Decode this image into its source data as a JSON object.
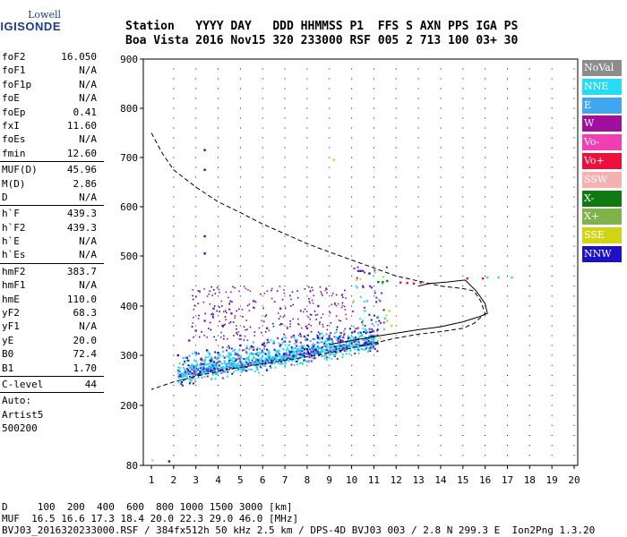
{
  "logo": {
    "line1": "Lowell",
    "line2": "DIGISONDE"
  },
  "header": {
    "line1": "Station   YYYY DAY   DDD HHMMSS P1  FFS S AXN PPS IGA PS",
    "line2": "Boa Vista 2016 Nov15 320 233000 RSF 005 2 713 100 03+ 30"
  },
  "params": {
    "group1": [
      {
        "name": "foF2",
        "value": "16.050"
      },
      {
        "name": "foF1",
        "value": "N/A"
      },
      {
        "name": "foF1p",
        "value": "N/A"
      },
      {
        "name": "foE",
        "value": "N/A"
      },
      {
        "name": "foEp",
        "value": "0.41"
      },
      {
        "name": "fxI",
        "value": "11.60"
      },
      {
        "name": "foEs",
        "value": "N/A"
      },
      {
        "name": "fmin",
        "value": "12.60"
      }
    ],
    "group2": [
      {
        "name": "MUF(D)",
        "value": "45.96"
      },
      {
        "name": "M(D)",
        "value": "2.86"
      },
      {
        "name": "D",
        "value": "N/A"
      }
    ],
    "group3": [
      {
        "name": "h`F",
        "value": "439.3"
      },
      {
        "name": "h`F2",
        "value": "439.3"
      },
      {
        "name": "h`E",
        "value": "N/A"
      },
      {
        "name": "h`Es",
        "value": "N/A"
      }
    ],
    "group4": [
      {
        "name": "hmF2",
        "value": "383.7"
      },
      {
        "name": "hmF1",
        "value": "N/A"
      },
      {
        "name": "hmE",
        "value": "110.0"
      },
      {
        "name": "yF2",
        "value": "68.3"
      },
      {
        "name": "yF1",
        "value": "N/A"
      },
      {
        "name": "yE",
        "value": "20.0"
      },
      {
        "name": "B0",
        "value": "72.4"
      },
      {
        "name": "B1",
        "value": "1.70"
      }
    ],
    "group5": [
      {
        "name": "C-level",
        "value": "44"
      }
    ],
    "auto": [
      "Auto:",
      "Artist5",
      "500200"
    ]
  },
  "legend": [
    {
      "label": "NoVal",
      "color": "#8c8c8c"
    },
    {
      "label": "NNE",
      "color": "#27dcf2"
    },
    {
      "label": "E",
      "color": "#3fa6f0"
    },
    {
      "label": "W",
      "color": "#a0109c"
    },
    {
      "label": "Vo-",
      "color": "#f03fb2"
    },
    {
      "label": "Vo+",
      "color": "#ee0f3c"
    },
    {
      "label": "SSW",
      "color": "#f5b0b0"
    },
    {
      "label": "X-",
      "color": "#0f7a12"
    },
    {
      "label": "X+",
      "color": "#7fb24a"
    },
    {
      "label": "SSE",
      "color": "#cfd414"
    },
    {
      "label": "NNW",
      "color": "#1e10c4"
    }
  ],
  "footer": {
    "line1": "D     100  200  400  600  800 1000 1500 3000 [km]",
    "line2": "MUF  16.5 16.6 17.3 18.4 20.0 22.3 29.0 46.0 [MHz]",
    "line3": "BVJ03_2016320233000.RSF / 384fx512h 50 kHz 2.5 km / DPS-4D BVJ03 003 / 2.8 N 299.3 E  Ion2Png 1.3.20"
  },
  "chart_data": {
    "type": "scatter",
    "x_ticks": [
      1,
      2,
      3,
      4,
      5,
      6,
      7,
      8,
      9,
      10,
      11,
      12,
      13,
      14,
      15,
      16,
      17,
      18,
      19,
      20
    ],
    "y_ticks": [
      80,
      200,
      300,
      400,
      500,
      600,
      700,
      800,
      900
    ],
    "xlim": [
      1,
      20
    ],
    "ylim": [
      80,
      900
    ],
    "grid": true,
    "series": [
      {
        "name": "NNE",
        "color": "#27dcf2",
        "points": [
          [
            2.2,
            270
          ],
          [
            2.5,
            272
          ],
          [
            2.8,
            275
          ],
          [
            3.0,
            278
          ],
          [
            3.2,
            280
          ],
          [
            3.5,
            282
          ],
          [
            3.8,
            283
          ],
          [
            4.0,
            285
          ],
          [
            4.3,
            287
          ],
          [
            4.6,
            290
          ],
          [
            5.0,
            292
          ],
          [
            5.3,
            294
          ],
          [
            5.6,
            296
          ],
          [
            6.0,
            298
          ],
          [
            6.3,
            300
          ],
          [
            6.6,
            302
          ],
          [
            7.0,
            304
          ],
          [
            7.3,
            306
          ],
          [
            7.6,
            308
          ],
          [
            8.0,
            310
          ],
          [
            8.3,
            312
          ],
          [
            8.6,
            314
          ],
          [
            9.0,
            316
          ],
          [
            9.3,
            318
          ],
          [
            9.6,
            320
          ],
          [
            10.0,
            330
          ],
          [
            10.3,
            345
          ],
          [
            10.5,
            370
          ],
          [
            10.6,
            390
          ],
          [
            10.7,
            410
          ],
          [
            11.5,
            375
          ],
          [
            16.1,
            457
          ],
          [
            16.6,
            457
          ],
          [
            17.2,
            457
          ]
        ]
      },
      {
        "name": "W",
        "color": "#a0109c",
        "points": [
          [
            2.7,
            330
          ],
          [
            3.0,
            350
          ],
          [
            3.4,
            370
          ],
          [
            3.8,
            395
          ],
          [
            4.2,
            360
          ],
          [
            4.6,
            385
          ],
          [
            5.0,
            340
          ],
          [
            5.6,
            410
          ],
          [
            6.2,
            355
          ],
          [
            6.8,
            395
          ],
          [
            7.4,
            340
          ],
          [
            8.0,
            355
          ],
          [
            8.5,
            400
          ],
          [
            9.0,
            340
          ],
          [
            10.3,
            470
          ]
        ]
      },
      {
        "name": "NNW",
        "color": "#1e10c4",
        "points": [
          [
            2.2,
            300
          ],
          [
            2.6,
            295
          ],
          [
            3.0,
            305
          ],
          [
            3.5,
            310
          ],
          [
            4.0,
            305
          ],
          [
            4.5,
            315
          ],
          [
            5.0,
            320
          ],
          [
            5.5,
            318
          ],
          [
            6.0,
            322
          ],
          [
            6.5,
            325
          ],
          [
            7.0,
            328
          ],
          [
            7.5,
            330
          ],
          [
            8.0,
            332
          ],
          [
            8.5,
            335
          ],
          [
            9.0,
            332
          ],
          [
            9.5,
            330
          ],
          [
            3.4,
            715
          ],
          [
            3.4,
            675
          ],
          [
            3.4,
            540
          ],
          [
            3.4,
            505
          ],
          [
            10.4,
            470
          ],
          [
            10.8,
            465
          ],
          [
            1.8,
            88
          ]
        ]
      },
      {
        "name": "Vo+",
        "color": "#ee0f3c",
        "points": [
          [
            12.2,
            447
          ],
          [
            12.5,
            446
          ],
          [
            12.8,
            445
          ],
          [
            13.1,
            447
          ],
          [
            15.2,
            455
          ],
          [
            15.9,
            455
          ]
        ]
      },
      {
        "name": "X-",
        "color": "#0f7a12",
        "points": [
          [
            11.2,
            448
          ],
          [
            11.4,
            448
          ],
          [
            11.6,
            450
          ]
        ]
      },
      {
        "name": "SSE",
        "color": "#cfd414",
        "points": [
          [
            11.6,
            370
          ],
          [
            11.7,
            390
          ],
          [
            11.8,
            360
          ],
          [
            9.2,
            695
          ]
        ]
      },
      {
        "name": "SSW",
        "color": "#f5b0b0",
        "points": [
          [
            1.05,
            90
          ]
        ]
      }
    ],
    "lines": [
      {
        "style": "dashed",
        "points": [
          [
            1,
            750
          ],
          [
            1.5,
            708
          ],
          [
            2,
            675
          ],
          [
            3,
            640
          ],
          [
            4,
            610
          ],
          [
            5,
            588
          ],
          [
            6,
            565
          ],
          [
            7,
            545
          ],
          [
            8,
            525
          ],
          [
            9,
            508
          ],
          [
            10,
            492
          ],
          [
            11,
            476
          ],
          [
            12,
            460
          ],
          [
            13,
            450
          ],
          [
            14,
            440
          ],
          [
            15,
            435
          ],
          [
            15.5,
            430
          ],
          [
            15.8,
            410
          ],
          [
            16,
            385
          ],
          [
            15.5,
            365
          ],
          [
            15,
            355
          ],
          [
            14,
            348
          ],
          [
            13,
            343
          ],
          [
            12,
            335
          ],
          [
            11,
            325
          ],
          [
            10,
            315
          ],
          [
            9,
            305
          ],
          [
            8,
            297
          ],
          [
            7,
            290
          ],
          [
            6,
            283
          ],
          [
            5,
            276
          ],
          [
            4,
            268
          ],
          [
            3,
            258
          ],
          [
            2,
            247
          ],
          [
            1,
            232
          ]
        ]
      },
      {
        "style": "solid",
        "points": [
          [
            9,
            322
          ],
          [
            10,
            330
          ],
          [
            11,
            338
          ],
          [
            12,
            345
          ],
          [
            13,
            352
          ],
          [
            14,
            358
          ],
          [
            15,
            368
          ],
          [
            15.7,
            378
          ],
          [
            16.1,
            385
          ],
          [
            16.0,
            405
          ],
          [
            15.6,
            430
          ],
          [
            15.1,
            452
          ],
          [
            14.3,
            448
          ],
          [
            13.5,
            445
          ],
          [
            13.0,
            440
          ]
        ]
      }
    ]
  }
}
